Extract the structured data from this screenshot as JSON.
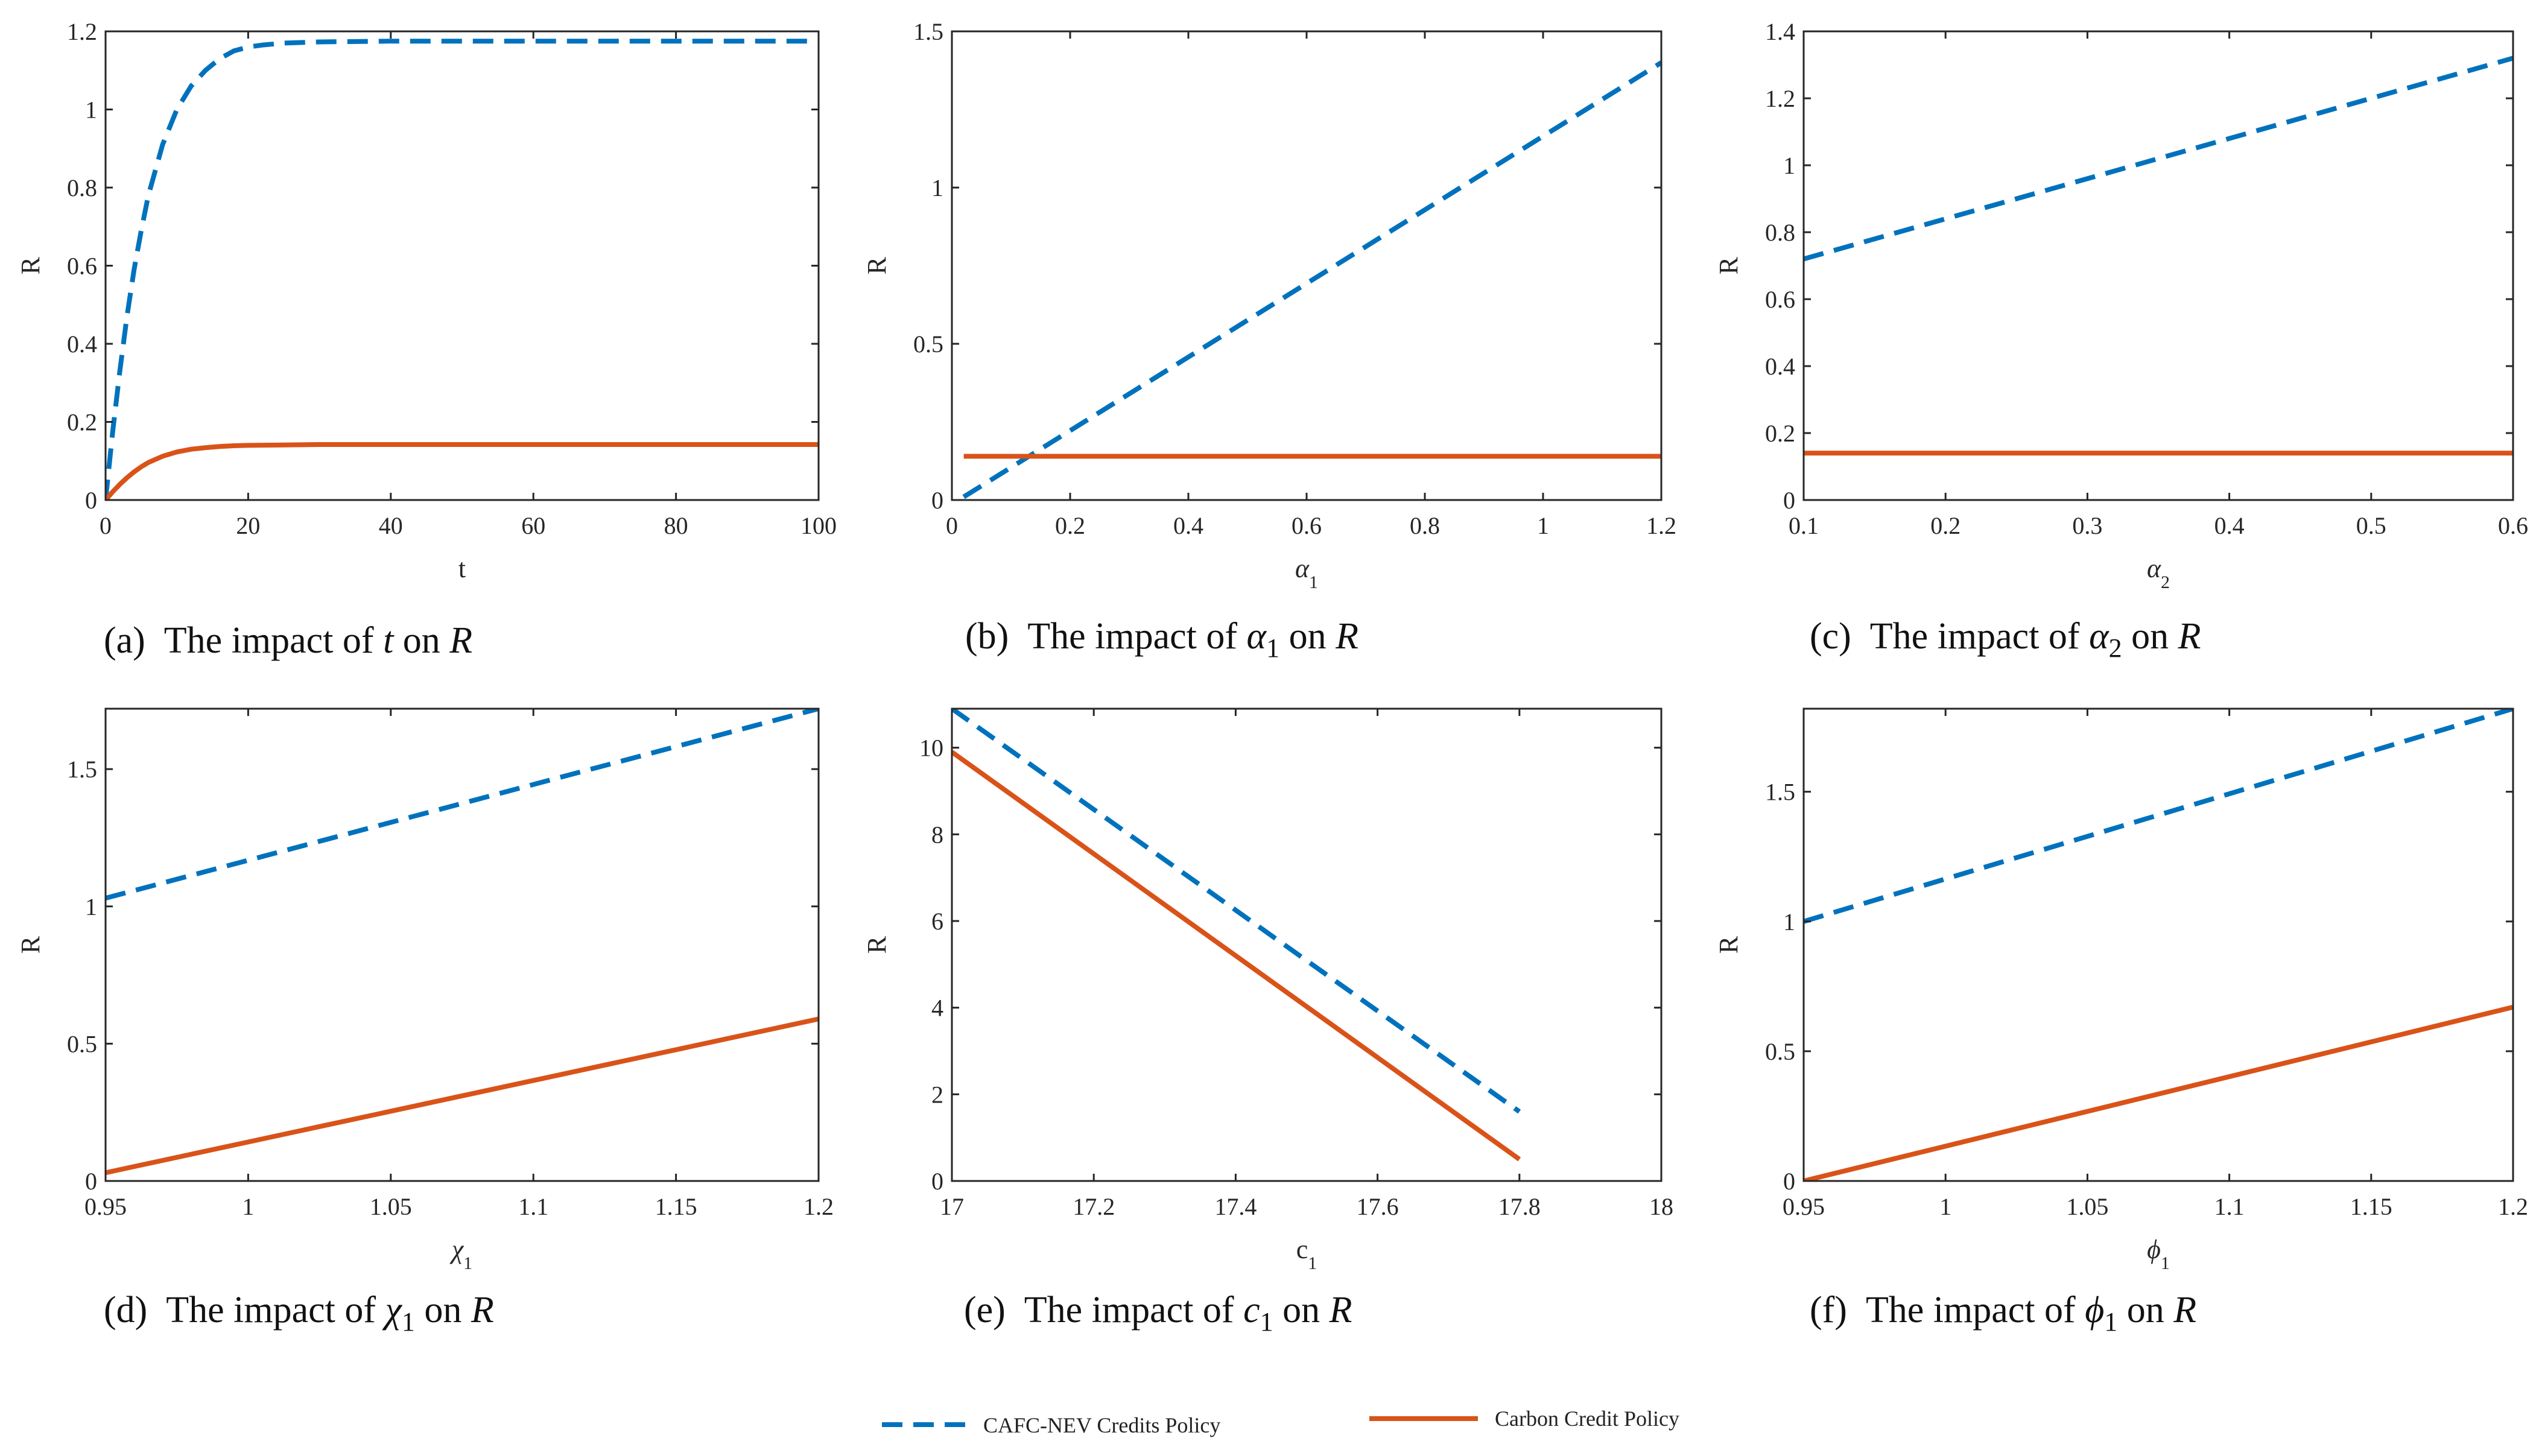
{
  "colors": {
    "cafc": "#0072BD",
    "carbon": "#D95319",
    "axis": "#262626"
  },
  "legend": {
    "cafc_label": "CAFC-NEV Credits Policy",
    "carbon_label": "Carbon Credit Policy"
  },
  "chart_data": [
    {
      "id": "a",
      "type": "line",
      "caption": {
        "tag": "(a)",
        "pre": "The impact of",
        "sym": "t",
        "sub": "",
        "post": "on",
        "tail": "R"
      },
      "xlabel": {
        "main": "t",
        "sub": "",
        "greek": false
      },
      "ylabel": "R",
      "xlim": [
        0,
        100
      ],
      "ylim": [
        0,
        1.2
      ],
      "xticks": [
        0,
        20,
        40,
        60,
        80,
        100
      ],
      "xtick_labels": [
        "0",
        "20",
        "40",
        "60",
        "80",
        "100"
      ],
      "yticks": [
        0,
        0.2,
        0.4,
        0.6,
        0.8,
        1,
        1.2
      ],
      "ytick_labels": [
        "0",
        "0.2",
        "0.4",
        "0.6",
        "0.8",
        "1",
        "1.2"
      ],
      "series": [
        {
          "name": "CAFC-NEV Credits Policy",
          "style": "dashed",
          "x": [
            0,
            1,
            2,
            3,
            4,
            5,
            6,
            8,
            10,
            12,
            14,
            16,
            18,
            20,
            22,
            25,
            30,
            40,
            50,
            60,
            80,
            100
          ],
          "y": [
            0,
            0.175,
            0.33,
            0.47,
            0.59,
            0.69,
            0.78,
            0.91,
            1.0,
            1.06,
            1.1,
            1.13,
            1.15,
            1.16,
            1.165,
            1.17,
            1.173,
            1.175,
            1.175,
            1.175,
            1.175,
            1.175
          ]
        },
        {
          "name": "Carbon Credit Policy",
          "style": "solid",
          "x": [
            0,
            1,
            2,
            3,
            4,
            5,
            6,
            8,
            10,
            12,
            14,
            16,
            18,
            20,
            25,
            30,
            40,
            60,
            80,
            100
          ],
          "y": [
            0,
            0.021,
            0.04,
            0.057,
            0.072,
            0.085,
            0.096,
            0.112,
            0.123,
            0.13,
            0.134,
            0.137,
            0.139,
            0.14,
            0.141,
            0.142,
            0.142,
            0.142,
            0.142,
            0.142
          ]
        }
      ]
    },
    {
      "id": "b",
      "type": "line",
      "caption": {
        "tag": "(b)",
        "pre": "The impact of",
        "sym": "α",
        "sub": "1",
        "post": "on",
        "tail": "R"
      },
      "xlabel": {
        "main": "α",
        "sub": "1",
        "greek": true
      },
      "ylabel": "R",
      "xlim": [
        0,
        1.2
      ],
      "ylim": [
        0,
        1.5
      ],
      "xticks": [
        0,
        0.2,
        0.4,
        0.6,
        0.8,
        1,
        1.2
      ],
      "xtick_labels": [
        "0",
        "0.2",
        "0.4",
        "0.6",
        "0.8",
        "1",
        "1.2"
      ],
      "yticks": [
        0,
        0.5,
        1,
        1.5
      ],
      "ytick_labels": [
        "0",
        "0.5",
        "1",
        "1.5"
      ],
      "series": [
        {
          "name": "CAFC-NEV Credits Policy",
          "style": "dashed",
          "x": [
            0.02,
            1.2
          ],
          "y": [
            0.01,
            1.4
          ]
        },
        {
          "name": "Carbon Credit Policy",
          "style": "solid",
          "x": [
            0.02,
            1.2
          ],
          "y": [
            0.14,
            0.14
          ]
        }
      ]
    },
    {
      "id": "c",
      "type": "line",
      "caption": {
        "tag": "(c)",
        "pre": "The impact of",
        "sym": "α",
        "sub": "2",
        "post": "on",
        "tail": "R"
      },
      "xlabel": {
        "main": "α",
        "sub": "2",
        "greek": true
      },
      "ylabel": "R",
      "xlim": [
        0.1,
        0.6
      ],
      "ylim": [
        0,
        1.4
      ],
      "xticks": [
        0.1,
        0.2,
        0.3,
        0.4,
        0.5,
        0.6
      ],
      "xtick_labels": [
        "0.1",
        "0.2",
        "0.3",
        "0.4",
        "0.5",
        "0.6"
      ],
      "yticks": [
        0,
        0.2,
        0.4,
        0.6,
        0.8,
        1,
        1.2,
        1.4
      ],
      "ytick_labels": [
        "0",
        "0.2",
        "0.4",
        "0.6",
        "0.8",
        "1",
        "1.2",
        "1.4"
      ],
      "series": [
        {
          "name": "CAFC-NEV Credits Policy",
          "style": "dashed",
          "x": [
            0.1,
            0.6
          ],
          "y": [
            0.72,
            1.32
          ]
        },
        {
          "name": "Carbon Credit Policy",
          "style": "solid",
          "x": [
            0.1,
            0.6
          ],
          "y": [
            0.14,
            0.14
          ]
        }
      ]
    },
    {
      "id": "d",
      "type": "line",
      "caption": {
        "tag": "(d)",
        "pre": "The impact of",
        "sym": "χ",
        "sub": "1",
        "post": "on",
        "tail": "R"
      },
      "xlabel": {
        "main": "χ",
        "sub": "1",
        "greek": true
      },
      "ylabel": "R",
      "xlim": [
        0.95,
        1.2
      ],
      "ylim": [
        0,
        1.72
      ],
      "xticks": [
        0.95,
        1,
        1.05,
        1.1,
        1.15,
        1.2
      ],
      "xtick_labels": [
        "0.95",
        "1",
        "1.05",
        "1.1",
        "1.15",
        "1.2"
      ],
      "yticks": [
        0,
        0.5,
        1,
        1.5
      ],
      "ytick_labels": [
        "0",
        "0.5",
        "1",
        "1.5"
      ],
      "series": [
        {
          "name": "CAFC-NEV Credits Policy",
          "style": "dashed",
          "x": [
            0.95,
            1.2
          ],
          "y": [
            1.03,
            1.72
          ]
        },
        {
          "name": "Carbon Credit Policy",
          "style": "solid",
          "x": [
            0.95,
            1.2
          ],
          "y": [
            0.03,
            0.59
          ]
        }
      ]
    },
    {
      "id": "e",
      "type": "line",
      "caption": {
        "tag": "(e)",
        "pre": "The impact of",
        "sym": "c",
        "sub": "1",
        "post": "on",
        "tail": "R"
      },
      "xlabel": {
        "main": "c",
        "sub": "1",
        "greek": false
      },
      "ylabel": "R",
      "xlim": [
        17,
        18
      ],
      "ylim": [
        0,
        10.9
      ],
      "xticks": [
        17,
        17.2,
        17.4,
        17.6,
        17.8,
        18
      ],
      "xtick_labels": [
        "17",
        "17.2",
        "17.4",
        "17.6",
        "17.8",
        "18"
      ],
      "yticks": [
        0,
        2,
        4,
        6,
        8,
        10
      ],
      "ytick_labels": [
        "0",
        "2",
        "4",
        "6",
        "8",
        "10"
      ],
      "series": [
        {
          "name": "CAFC-NEV Credits Policy",
          "style": "dashed",
          "x": [
            17,
            17.8
          ],
          "y": [
            10.9,
            1.6
          ]
        },
        {
          "name": "Carbon Credit Policy",
          "style": "solid",
          "x": [
            17,
            17.8
          ],
          "y": [
            9.9,
            0.5
          ]
        }
      ]
    },
    {
      "id": "f",
      "type": "line",
      "caption": {
        "tag": "(f)",
        "pre": "The impact of",
        "sym": "ϕ",
        "sub": "1",
        "post": "on",
        "tail": "R"
      },
      "xlabel": {
        "main": "ϕ",
        "sub": "1",
        "greek": true
      },
      "ylabel": "R",
      "xlim": [
        0.95,
        1.2
      ],
      "ylim": [
        0,
        1.82
      ],
      "xticks": [
        0.95,
        1,
        1.05,
        1.1,
        1.15,
        1.2
      ],
      "xtick_labels": [
        "0.95",
        "1",
        "1.05",
        "1.1",
        "1.15",
        "1.2"
      ],
      "yticks": [
        0,
        0.5,
        1,
        1.5
      ],
      "ytick_labels": [
        "0",
        "0.5",
        "1",
        "1.5"
      ],
      "series": [
        {
          "name": "CAFC-NEV Credits Policy",
          "style": "dashed",
          "x": [
            0.95,
            1.2
          ],
          "y": [
            1.0,
            1.82
          ]
        },
        {
          "name": "Carbon Credit Policy",
          "style": "solid",
          "x": [
            0.95,
            1.2
          ],
          "y": [
            0.0,
            0.67
          ]
        }
      ]
    }
  ]
}
